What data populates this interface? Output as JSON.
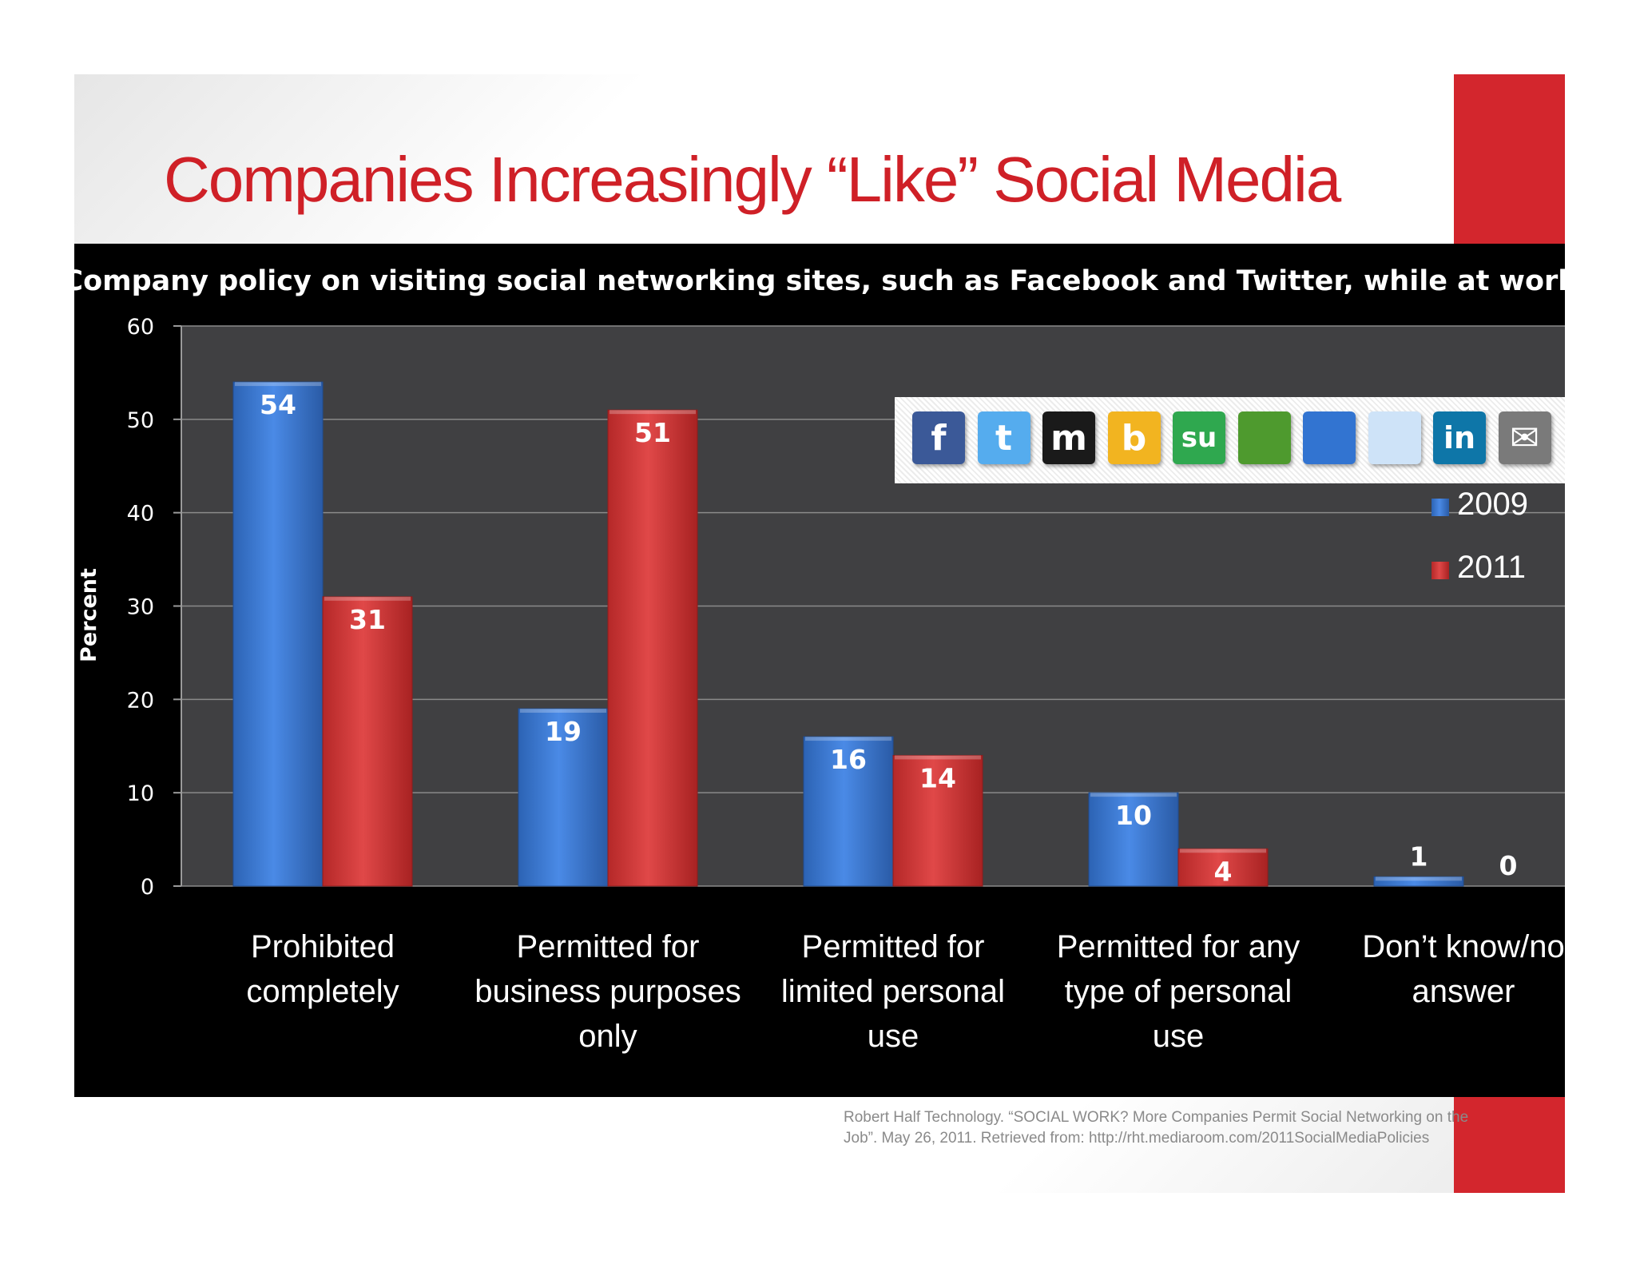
{
  "slide": {
    "title": "Companies  Increasingly “Like” Social Media",
    "citation_line1": "Robert Half Technology. “SOCIAL WORK? More Companies Permit Social Networking on the",
    "citation_line2": "Job”. May 26, 2011. Retrieved from: http://rht.mediaroom.com/2011SocialMediaPolicies"
  },
  "icons": [
    {
      "name": "facebook-icon",
      "glyph": "f",
      "color": "#3b5998"
    },
    {
      "name": "twitter-icon",
      "glyph": "t",
      "color": "#55acee"
    },
    {
      "name": "myspace-icon",
      "glyph": "m",
      "color": "#1a1a1a"
    },
    {
      "name": "bebo-icon",
      "glyph": "b",
      "color": "#f2b420"
    },
    {
      "name": "stumbleupon-icon",
      "glyph": "su",
      "color": "#2fa84f"
    },
    {
      "name": "google-bookmarks-icon",
      "glyph": "",
      "color": "#4e9a2e"
    },
    {
      "name": "delicious-icon",
      "glyph": "",
      "color": "#3274d1"
    },
    {
      "name": "reddit-icon",
      "glyph": "",
      "color": "#cee3f8"
    },
    {
      "name": "linkedin-icon",
      "glyph": "in",
      "color": "#0e76a8"
    },
    {
      "name": "email-icon",
      "glyph": "✉",
      "color": "#7a7a7a"
    }
  ],
  "chart_data": {
    "type": "bar",
    "title": "Company policy on visiting social networking sites, such as Facebook and Twitter, while at work",
    "ylabel": "Percent",
    "ylim": [
      0,
      60
    ],
    "yticks": [
      0,
      10,
      20,
      30,
      40,
      50,
      60
    ],
    "grid": true,
    "legend_position": "right",
    "categories": [
      [
        "Prohibited",
        "completely"
      ],
      [
        "Permitted for",
        "business purposes",
        "only"
      ],
      [
        "Permitted for",
        "limited personal",
        "use"
      ],
      [
        "Permitted for any",
        "type of personal",
        "use"
      ],
      [
        "Don’t know/no",
        "answer"
      ]
    ],
    "series": [
      {
        "name": "2009",
        "color": "#3b7dd8",
        "values": [
          54,
          19,
          16,
          10,
          1
        ]
      },
      {
        "name": "2011",
        "color": "#d63a3a",
        "values": [
          31,
          51,
          14,
          4,
          0
        ]
      }
    ]
  }
}
